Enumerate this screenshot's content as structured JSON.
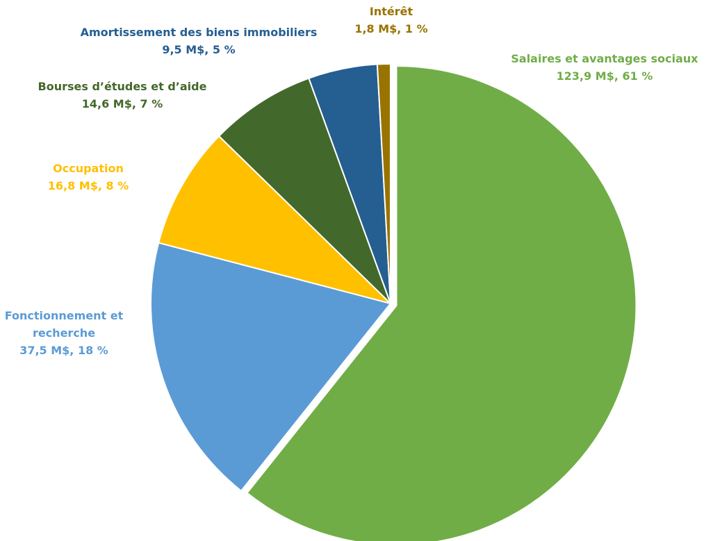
{
  "chart_data": {
    "type": "pie",
    "categories": [
      "Salaires et avantages sociaux",
      "Fonctionnement et recherche",
      "Occupation",
      "Bourses d’études et d’aide",
      "Amortissement des biens immobiliers",
      "Intérêt"
    ],
    "values": [
      123.9,
      37.5,
      16.8,
      14.6,
      9.5,
      1.8
    ],
    "value_labels": [
      "123,9 M$, 61 %",
      "37,5 M$, 18 %",
      "16,8 M$, 8 %",
      "14,6 M$, 7 %",
      "9,5 M$, 5 %",
      "1,8 M$, 1 %"
    ],
    "colors": [
      "#70ad47",
      "#5b9bd5",
      "#ffc000",
      "#43682b",
      "#255e91",
      "#997300"
    ],
    "exploded": [
      0
    ]
  }
}
